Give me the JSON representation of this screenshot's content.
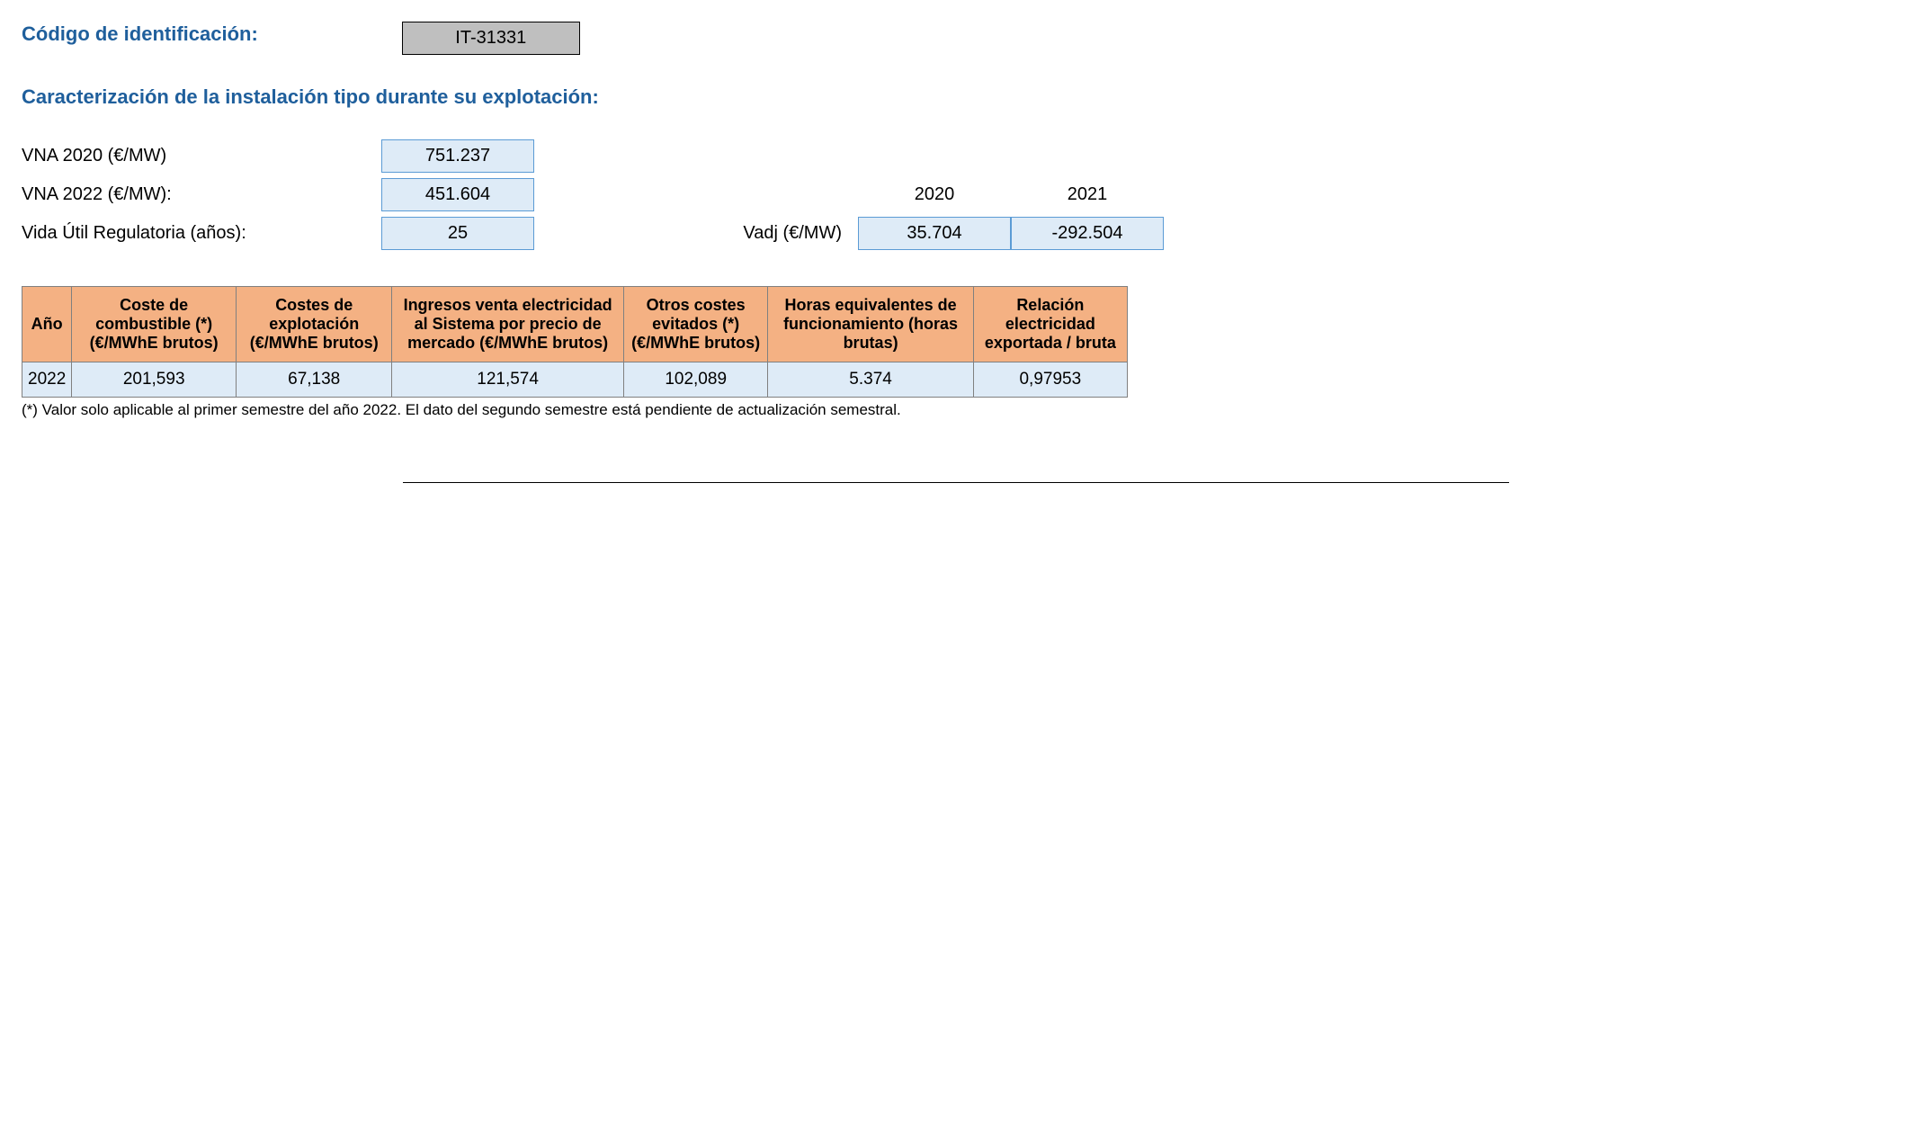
{
  "header": {
    "code_label": "Código de identificación:",
    "code_value": "IT-31331",
    "section_title": "Caracterización de la instalación tipo durante su explotación:"
  },
  "params": {
    "vna2020_label": "VNA 2020 (€/MW)",
    "vna2020_value": "751.237",
    "vna2022_label": "VNA 2022 (€/MW):",
    "vna2022_value": "451.604",
    "vida_label": "Vida Útil Regulatoria (años):",
    "vida_value": "25",
    "vadj_label": "Vadj (€/MW)",
    "year_2020": "2020",
    "year_2021": "2021",
    "vadj_2020": "35.704",
    "vadj_2021": "-292.504"
  },
  "table": {
    "columns": [
      "Año",
      "Coste de combustible (*) (€/MWhE brutos)",
      "Costes de explotación (€/MWhE brutos)",
      "Ingresos venta electricidad al Sistema por precio de mercado (€/MWhE brutos)",
      "Otros costes evitados (*) (€/MWhE brutos)",
      "Horas equivalentes de funcionamiento (horas brutas)",
      "Relación electricidad exportada / bruta"
    ],
    "row": {
      "c0": "2022",
      "c1": "201,593",
      "c2": "67,138",
      "c3": "121,574",
      "c4": "102,089",
      "c5": "5.374",
      "c6": "0,97953"
    }
  },
  "footnote": "(*) Valor solo aplicable al primer semestre del año 2022. El dato del segundo semestre está pendiente de actualización semestral.",
  "style": {
    "heading_color": "#1f5f9c",
    "code_box_bg": "#bfbfbf",
    "value_box_bg": "#deebf7",
    "value_box_border": "#5b9bd5",
    "table_header_bg": "#f4b183",
    "table_cell_bg": "#deebf7",
    "table_border": "#808080"
  }
}
